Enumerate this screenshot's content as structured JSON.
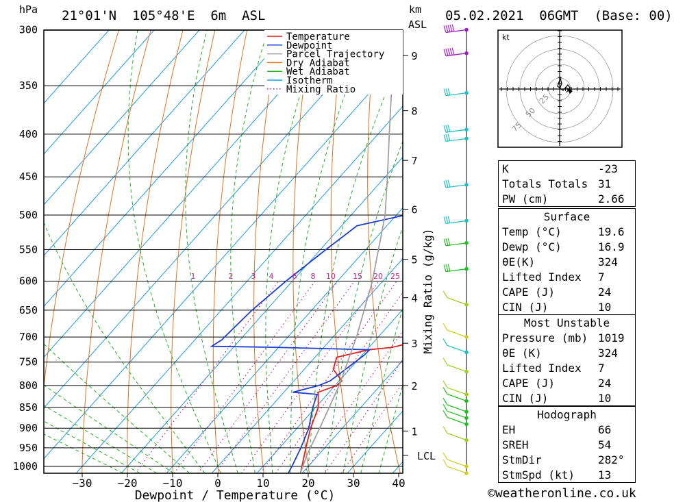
{
  "header": {
    "pressure_unit": "hPa",
    "location": "21°01'N  105°48'E  6m  ASL",
    "km_label": "km",
    "asl_label": "ASL",
    "datetime": "05.02.2021  06GMT  (Base: 00)"
  },
  "chart_data": {
    "type": "skew-t",
    "xlabel": "Dewpoint / Temperature (°C)",
    "ylabel": "hPa",
    "right_axis_label": "Mixing Ratio (g/kg)",
    "x_ticks": [
      -30,
      -20,
      -10,
      0,
      10,
      20,
      30,
      40
    ],
    "pressure_levels": [
      300,
      350,
      400,
      450,
      500,
      550,
      600,
      650,
      700,
      750,
      800,
      850,
      900,
      950,
      1000
    ],
    "height_ticks_km": [
      {
        "label": "9",
        "p": 322
      },
      {
        "label": "8",
        "p": 375
      },
      {
        "label": "7",
        "p": 430
      },
      {
        "label": "6",
        "p": 492
      },
      {
        "label": "5",
        "p": 565
      },
      {
        "label": "4",
        "p": 628
      },
      {
        "label": "3",
        "p": 712
      },
      {
        "label": "2",
        "p": 800
      },
      {
        "label": "1",
        "p": 907
      }
    ],
    "lcl": {
      "label": "LCL",
      "p": 970
    },
    "mixing_ratio_labels": [
      "1",
      "2",
      "3",
      "4",
      "6",
      "8",
      "10",
      "15",
      "20",
      "25"
    ],
    "legend": [
      "Temperature",
      "Dewpoint",
      "Parcel Trajectory",
      "Dry Adiabat",
      "Wet Adiabat",
      "Isotherm",
      "Mixing Ratio"
    ],
    "colors": {
      "temperature": "#e02020",
      "dewpoint": "#1a3bd6",
      "parcel": "#a0a0a0",
      "dry_adiabat": "#e07020",
      "wet_adiabat": "#20b020",
      "isotherm": "#1e9be0",
      "mixing_ratio": "#c0208a"
    },
    "series": [
      {
        "name": "Temperature",
        "points": [
          [
            1019,
            19.6
          ],
          [
            1000,
            18.6
          ],
          [
            950,
            15.8
          ],
          [
            900,
            13
          ],
          [
            850,
            10.6
          ],
          [
            815,
            7.6
          ],
          [
            800,
            10.4
          ],
          [
            790,
            10.6
          ],
          [
            765,
            6.4
          ],
          [
            740,
            4.8
          ],
          [
            725,
            10.4
          ],
          [
            720,
            15.2
          ],
          [
            710,
            18.8
          ],
          [
            690,
            17
          ],
          [
            650,
            13.6
          ],
          [
            600,
            9.4
          ],
          [
            550,
            5
          ],
          [
            500,
            -1.6
          ],
          [
            480,
            -5
          ],
          [
            460,
            -5
          ],
          [
            450,
            -7
          ],
          [
            400,
            -14
          ],
          [
            380,
            -18.4
          ],
          [
            360,
            -20.4
          ],
          [
            350,
            -23
          ],
          [
            340,
            -22.6
          ],
          [
            320,
            -24.6
          ],
          [
            300,
            -26
          ]
        ]
      },
      {
        "name": "Dewpoint",
        "points": [
          [
            1019,
            16.9
          ],
          [
            1000,
            16.4
          ],
          [
            950,
            14.7
          ],
          [
            900,
            12.6
          ],
          [
            850,
            9.4
          ],
          [
            820,
            7.8
          ],
          [
            815,
            2
          ],
          [
            800,
            6.4
          ],
          [
            790,
            8
          ],
          [
            735,
            10.5
          ],
          [
            725,
            10.6
          ],
          [
            720,
            -11
          ],
          [
            718,
            -25
          ],
          [
            705,
            -24
          ],
          [
            700,
            -24
          ],
          [
            650,
            -23.2
          ],
          [
            600,
            -21.4
          ],
          [
            550,
            -18.8
          ],
          [
            515,
            -16.6
          ],
          [
            490,
            -2.2
          ],
          [
            460,
            -14
          ],
          [
            440,
            -15.4
          ],
          [
            420,
            2.4
          ],
          [
            380,
            5
          ],
          [
            360,
            -13
          ],
          [
            340,
            -3
          ],
          [
            330,
            -9.6
          ],
          [
            320,
            5.6
          ],
          [
            300,
            -1.6
          ]
        ]
      },
      {
        "name": "Parcel Trajectory",
        "points": [
          [
            1019,
            19.6
          ],
          [
            970,
            17.5
          ],
          [
            900,
            15
          ],
          [
            800,
            10.9
          ],
          [
            700,
            5.2
          ],
          [
            600,
            -2.3
          ],
          [
            500,
            -12.5
          ],
          [
            450,
            -19.5
          ],
          [
            400,
            -27.5
          ],
          [
            350,
            -36.5
          ],
          [
            300,
            -47
          ]
        ]
      }
    ],
    "wind_barbs": [
      {
        "p": 300,
        "color": "#a020c0"
      },
      {
        "p": 320,
        "color": "#a020c0"
      },
      {
        "p": 357,
        "color": "#20c0c0"
      },
      {
        "p": 395,
        "color": "#20c0c0"
      },
      {
        "p": 405,
        "color": "#20c0c0"
      },
      {
        "p": 460,
        "color": "#20c0c0"
      },
      {
        "p": 508,
        "color": "#20c0c0"
      },
      {
        "p": 540,
        "color": "#20c020"
      },
      {
        "p": 580,
        "color": "#20c020"
      },
      {
        "p": 640,
        "color": "#a0d020"
      },
      {
        "p": 700,
        "color": "#d0d020"
      },
      {
        "p": 730,
        "color": "#20c0c0"
      },
      {
        "p": 770,
        "color": "#a0d020"
      },
      {
        "p": 820,
        "color": "#a0d020"
      },
      {
        "p": 835,
        "color": "#20c020"
      },
      {
        "p": 860,
        "color": "#20c020"
      },
      {
        "p": 875,
        "color": "#20c020"
      },
      {
        "p": 890,
        "color": "#20c020"
      },
      {
        "p": 930,
        "color": "#a0d020"
      },
      {
        "p": 1000,
        "color": "#d0d020"
      },
      {
        "p": 1019,
        "color": "#d0d020"
      }
    ],
    "hodograph": {
      "unit": "kt",
      "ring_labels": [
        "25",
        "50",
        "75"
      ]
    }
  },
  "indices": {
    "rows": [
      {
        "label": "K",
        "value": "-23"
      },
      {
        "label": "Totals Totals",
        "value": "31"
      },
      {
        "label": "PW (cm)",
        "value": "2.66"
      }
    ]
  },
  "surface": {
    "title": "Surface",
    "rows": [
      {
        "label": "Temp (°C)",
        "value": "19.6"
      },
      {
        "label": "Dewp (°C)",
        "value": "16.9"
      },
      {
        "label": "θE(K)",
        "value": "324"
      },
      {
        "label": "Lifted Index",
        "value": "7"
      },
      {
        "label": "CAPE (J)",
        "value": "24"
      },
      {
        "label": "CIN (J)",
        "value": "10"
      }
    ]
  },
  "most_unstable": {
    "title": "Most Unstable",
    "rows": [
      {
        "label": "Pressure (mb)",
        "value": "1019"
      },
      {
        "label": "θE (K)",
        "value": "324"
      },
      {
        "label": "Lifted Index",
        "value": "7"
      },
      {
        "label": "CAPE (J)",
        "value": "24"
      },
      {
        "label": "CIN (J)",
        "value": "10"
      }
    ]
  },
  "hodograph_table": {
    "title": "Hodograph",
    "rows": [
      {
        "label": "EH",
        "value": "66"
      },
      {
        "label": "SREH",
        "value": "54"
      },
      {
        "label": "StmDir",
        "value": "282°"
      },
      {
        "label": "StmSpd (kt)",
        "value": "13"
      }
    ]
  },
  "footer": {
    "credit": "©weatheronline.co.uk"
  }
}
